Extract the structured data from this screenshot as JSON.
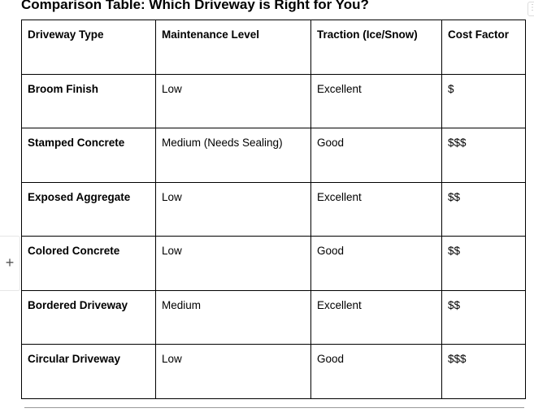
{
  "title": "Comparison Table: Which Driveway is Right for You?",
  "table": {
    "headers": [
      "Driveway Type",
      "Maintenance Level",
      "Traction (Ice/Snow)",
      "Cost Factor"
    ],
    "rows": [
      [
        "Broom Finish",
        "Low",
        "Excellent",
        "$"
      ],
      [
        "Stamped Concrete",
        "Medium (Needs Sealing)",
        "Good",
        "$$$"
      ],
      [
        "Exposed Aggregate",
        "Low",
        "Excellent",
        "$$"
      ],
      [
        "Colored Concrete",
        "Low",
        "Good",
        "$$"
      ],
      [
        "Bordered Driveway",
        "Medium",
        "Excellent",
        "$$"
      ],
      [
        "Circular Driveway",
        "Low",
        "Good",
        "$$$"
      ]
    ]
  },
  "add_row_icon": "plus-icon",
  "add_row_symbol": "+",
  "handle_icon": "drag-handle-icon"
}
